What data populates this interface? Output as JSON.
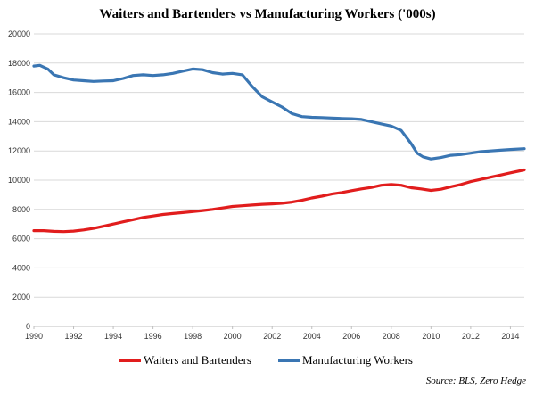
{
  "chart_data": {
    "type": "line",
    "title": "Waiters and Bartenders vs Manufacturing Workers ('000s)",
    "xlabel": "",
    "ylabel": "",
    "xlim": [
      1990,
      2014.7
    ],
    "ylim": [
      0,
      20000
    ],
    "x_ticks": [
      "1990",
      "1992",
      "1994",
      "1996",
      "1998",
      "2000",
      "2002",
      "2004",
      "2006",
      "2008",
      "2010",
      "2012",
      "2014"
    ],
    "y_ticks": [
      "0",
      "2000",
      "4000",
      "6000",
      "8000",
      "10000",
      "12000",
      "14000",
      "16000",
      "18000",
      "20000"
    ],
    "grid": true,
    "legend_position": "bottom",
    "source": "Source: BLS, Zero Hedge",
    "series": [
      {
        "name": "Waiters and Bartenders",
        "color": "#e11d1d",
        "x": [
          1990,
          1990.5,
          1991,
          1991.5,
          1992,
          1992.5,
          1993,
          1993.5,
          1994,
          1994.5,
          1995,
          1995.5,
          1996,
          1996.5,
          1997,
          1997.5,
          1998,
          1998.5,
          1999,
          1999.5,
          2000,
          2000.5,
          2001,
          2001.5,
          2002,
          2002.5,
          2003,
          2003.5,
          2004,
          2004.5,
          2005,
          2005.5,
          2006,
          2006.5,
          2007,
          2007.5,
          2008,
          2008.5,
          2009,
          2009.5,
          2010,
          2010.5,
          2011,
          2011.5,
          2012,
          2012.5,
          2013,
          2013.5,
          2014,
          2014.7
        ],
        "values": [
          6550,
          6550,
          6500,
          6480,
          6520,
          6600,
          6700,
          6850,
          7000,
          7150,
          7300,
          7450,
          7550,
          7650,
          7720,
          7780,
          7850,
          7920,
          8000,
          8100,
          8200,
          8250,
          8300,
          8350,
          8380,
          8420,
          8500,
          8620,
          8780,
          8900,
          9050,
          9150,
          9280,
          9400,
          9500,
          9650,
          9700,
          9650,
          9480,
          9400,
          9300,
          9380,
          9550,
          9700,
          9900,
          10050,
          10200,
          10350,
          10500,
          10700
        ]
      },
      {
        "name": "Manufacturing Workers",
        "color": "#3a76b3",
        "x": [
          1990,
          1990.3,
          1990.7,
          1991,
          1991.5,
          1992,
          1992.5,
          1993,
          1993.5,
          1994,
          1994.5,
          1995,
          1995.5,
          1996,
          1996.5,
          1997,
          1997.5,
          1998,
          1998.5,
          1999,
          1999.5,
          2000,
          2000.5,
          2001,
          2001.5,
          2002,
          2002.5,
          2003,
          2003.5,
          2004,
          2004.5,
          2005,
          2005.5,
          2006,
          2006.5,
          2007,
          2007.5,
          2008,
          2008.5,
          2009,
          2009.3,
          2009.6,
          2010,
          2010.5,
          2011,
          2011.5,
          2012,
          2012.5,
          2013,
          2013.5,
          2014,
          2014.7
        ],
        "values": [
          17800,
          17850,
          17600,
          17200,
          17000,
          16850,
          16800,
          16750,
          16780,
          16800,
          16950,
          17150,
          17200,
          17150,
          17200,
          17300,
          17450,
          17600,
          17550,
          17350,
          17250,
          17300,
          17200,
          16400,
          15700,
          15350,
          15000,
          14550,
          14350,
          14300,
          14280,
          14250,
          14220,
          14200,
          14150,
          14000,
          13850,
          13700,
          13400,
          12500,
          11850,
          11600,
          11450,
          11550,
          11700,
          11750,
          11850,
          11950,
          12000,
          12050,
          12100,
          12150
        ]
      }
    ]
  }
}
